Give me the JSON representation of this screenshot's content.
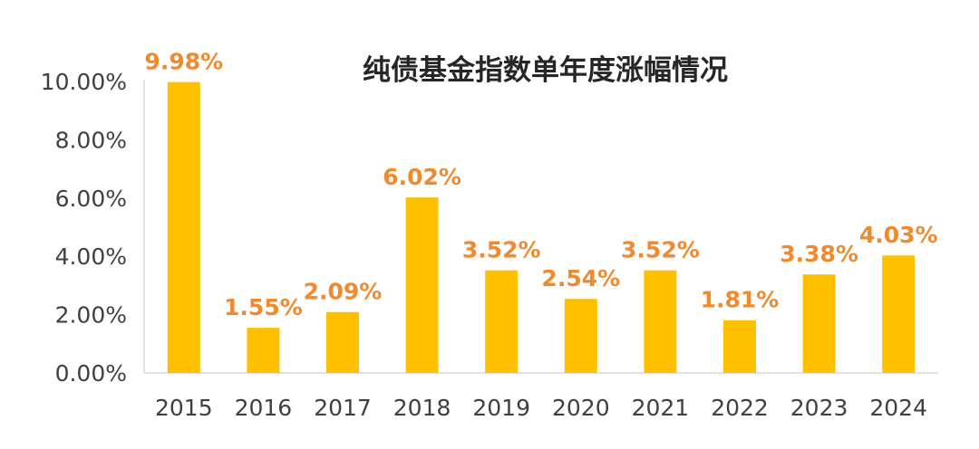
{
  "chart_data": {
    "type": "bar",
    "title": "纯债基金指数单年度涨幅情况",
    "categories": [
      "2015",
      "2016",
      "2017",
      "2018",
      "2019",
      "2020",
      "2021",
      "2022",
      "2023",
      "2024"
    ],
    "values": [
      9.98,
      1.55,
      2.09,
      6.02,
      3.52,
      2.54,
      3.52,
      1.81,
      3.38,
      4.03
    ],
    "data_labels": [
      "9.98%",
      "1.55%",
      "2.09%",
      "6.02%",
      "3.52%",
      "2.54%",
      "3.52%",
      "1.81%",
      "3.38%",
      "4.03%"
    ],
    "yticks": [
      "0.00%",
      "2.00%",
      "4.00%",
      "6.00%",
      "8.00%",
      "10.00%"
    ],
    "ylim": [
      0,
      10
    ],
    "xlabel": "",
    "ylabel": "",
    "grid": false,
    "colors": {
      "bar": "#FFC000",
      "label": "#F08A2E",
      "axis": "#D9D9D9",
      "text": "#404040"
    }
  }
}
